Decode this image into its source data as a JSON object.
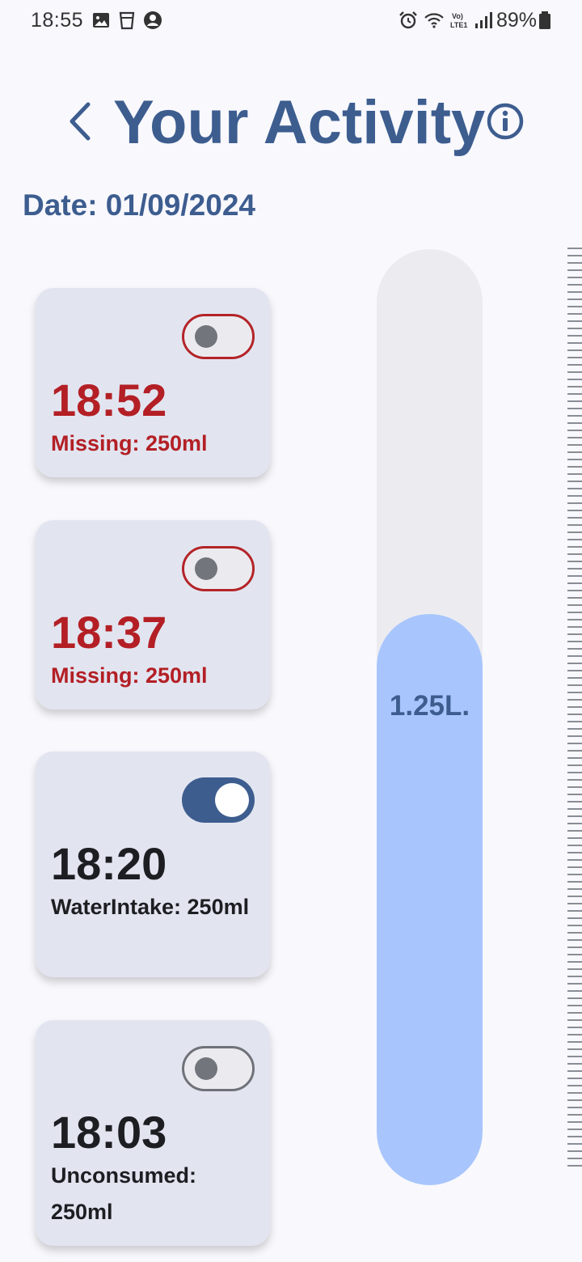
{
  "status_bar": {
    "time": "18:55",
    "battery": "89%",
    "icons": [
      "gallery-icon",
      "cup-icon",
      "account-icon",
      "alarm-icon",
      "wifi-icon",
      "volte-icon",
      "signal-icon",
      "battery-icon"
    ]
  },
  "header": {
    "title": "Your Activity",
    "back_icon": "chevron-left-icon",
    "info_icon": "info-icon"
  },
  "date_label": "Date: 01/09/2024",
  "entries": [
    {
      "time": "18:52",
      "status": "Missing: 250ml",
      "toggle": "off",
      "state": "missing"
    },
    {
      "time": "18:37",
      "status": "Missing: 250ml",
      "toggle": "off",
      "state": "missing"
    },
    {
      "time": "18:20",
      "status": "WaterIntake: 250ml",
      "toggle": "on",
      "state": "consumed"
    },
    {
      "time": "18:03",
      "status": "Unconsumed: 250ml",
      "toggle": "off",
      "state": "unconsumed"
    }
  ],
  "intake": {
    "label": "1.25L.",
    "fill_fraction": 0.61
  },
  "colors": {
    "primary": "#3d5d8f",
    "missing": "#b31f25",
    "card_bg": "#e2e5f0",
    "fill": "#a8c6fd",
    "track": "#ececf0"
  }
}
